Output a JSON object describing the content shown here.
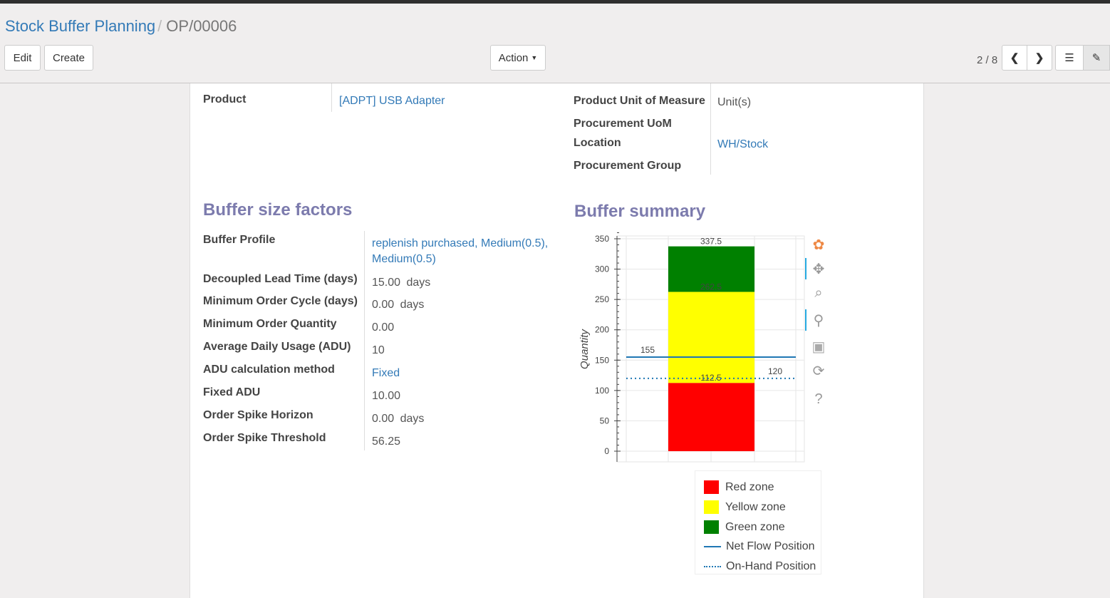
{
  "breadcrumb": {
    "parent": "Stock Buffer Planning",
    "current": "OP/00006"
  },
  "toolbar": {
    "edit": "Edit",
    "create": "Create",
    "action": "Action",
    "pager": "2 / 8"
  },
  "form": {
    "product_label": "Product",
    "product_value": "[ADPT] USB Adapter",
    "uom_label": "Product Unit of Measure",
    "uom_value": "Unit(s)",
    "proc_uom_label": "Procurement UoM",
    "location_label": "Location",
    "location_value": "WH/Stock",
    "proc_group_label": "Procurement Group"
  },
  "factors": {
    "title": "Buffer size factors",
    "rows": [
      {
        "label": "Buffer Profile",
        "value": "replenish purchased, Medium(0.5), Medium(0.5)",
        "link": true
      },
      {
        "label": "Decoupled Lead Time (days)",
        "value": "15.00",
        "unit": "days"
      },
      {
        "label": "Minimum Order Cycle (days)",
        "value": "0.00",
        "unit": "days"
      },
      {
        "label": "Minimum Order Quantity",
        "value": "0.00"
      },
      {
        "label": "Average Daily Usage (ADU)",
        "value": "10"
      },
      {
        "label": "ADU calculation method",
        "value": "Fixed",
        "link": true
      },
      {
        "label": "Fixed ADU",
        "value": "10.00"
      },
      {
        "label": "Order Spike Horizon",
        "value": "0.00",
        "unit": "days"
      },
      {
        "label": "Order Spike Threshold",
        "value": "56.25"
      }
    ]
  },
  "summary": {
    "title": "Buffer summary"
  },
  "chart_data": {
    "type": "bar",
    "stacked": true,
    "ylabel": "Quantity",
    "ylim": [
      0,
      350
    ],
    "yticks": [
      0,
      50,
      100,
      150,
      200,
      250,
      300,
      350
    ],
    "grid": true,
    "series": [
      {
        "name": "Red zone",
        "from": 0,
        "to": 112.5,
        "color": "#ff0000",
        "label": "112.5"
      },
      {
        "name": "Yellow zone",
        "from": 112.5,
        "to": 262.5,
        "color": "#ffff00",
        "label": "262.5"
      },
      {
        "name": "Green zone",
        "from": 262.5,
        "to": 337.5,
        "color": "#008000",
        "label": "337.5"
      }
    ],
    "lines": [
      {
        "name": "Net Flow Position",
        "value": 155,
        "style": "solid",
        "color": "#1f77b4",
        "label": "155"
      },
      {
        "name": "On-Hand Position",
        "value": 120,
        "style": "dotted",
        "color": "#1f77b4",
        "label": "120"
      }
    ],
    "legend": "bottom"
  }
}
